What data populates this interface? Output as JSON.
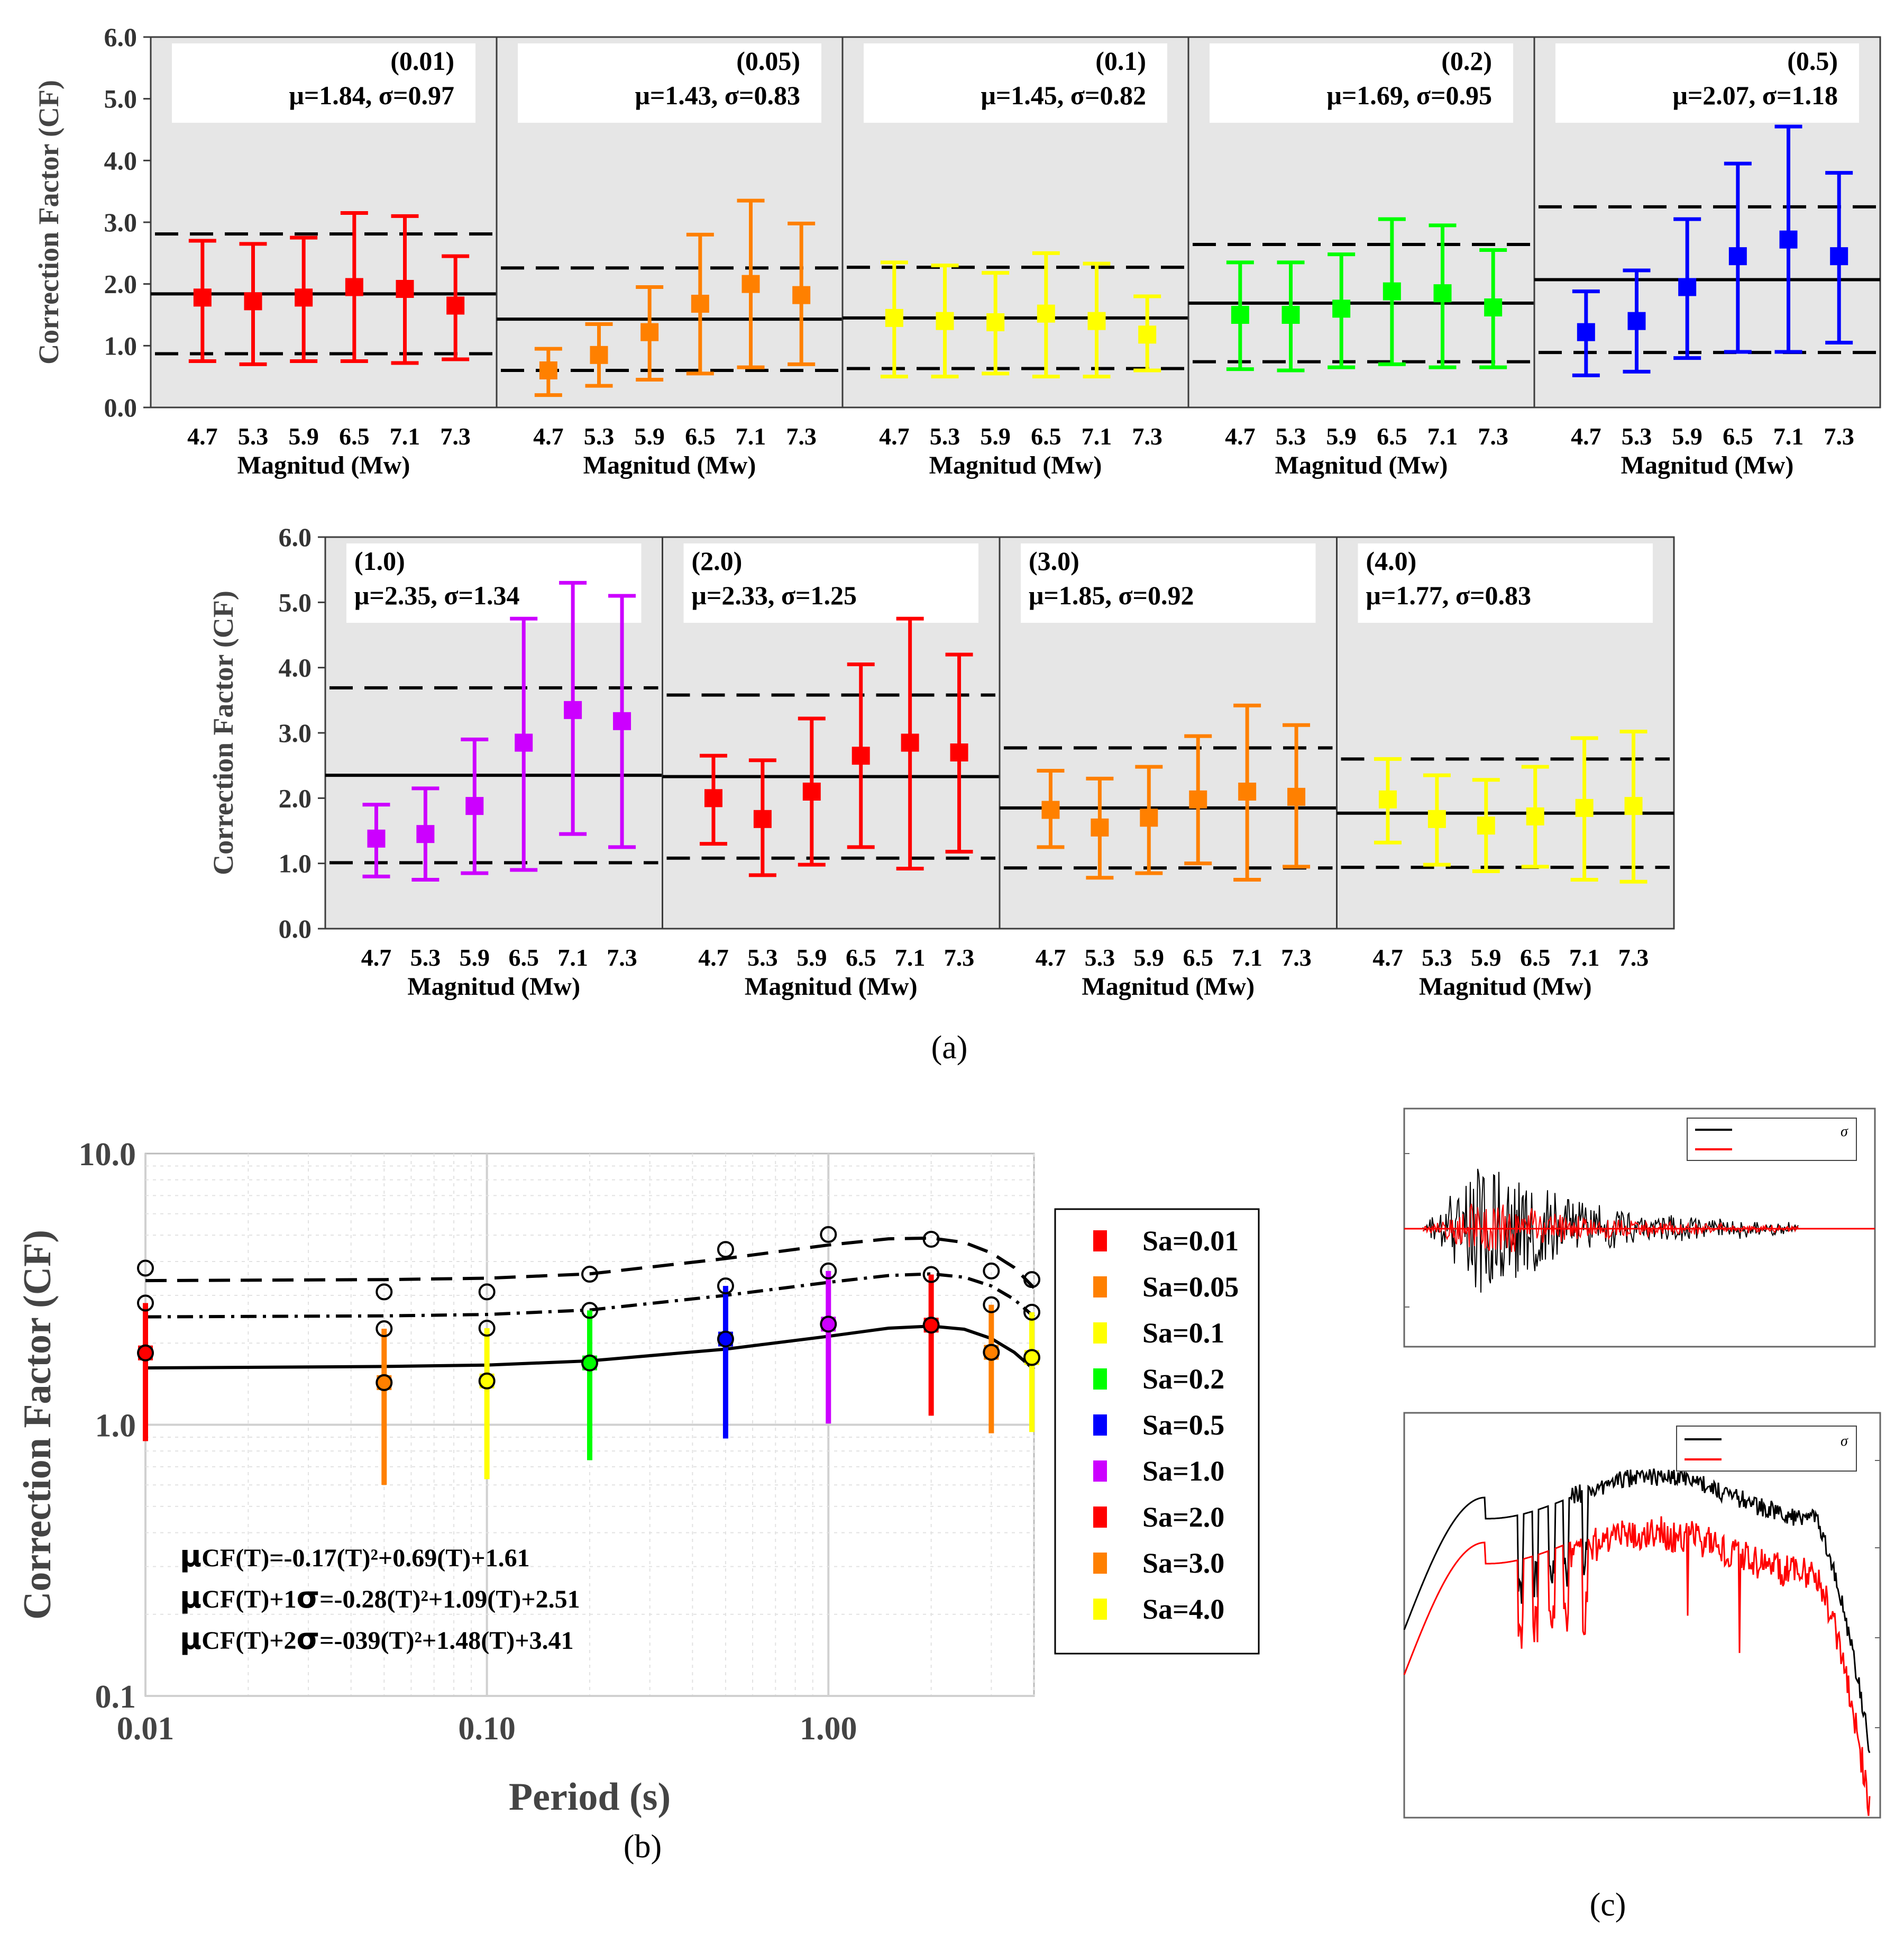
{
  "colors": {
    "Sa=0.01": "#ff0000",
    "Sa=0.05": "#ff8000",
    "Sa=0.1": "#ffff00",
    "Sa=0.2": "#00ff00",
    "Sa=0.5": "#0000ff",
    "Sa=1.0": "#cc00ff",
    "Sa=2.0": "#ff0000",
    "Sa=3.0": "#ff8000",
    "Sa=4.0": "#ffff00",
    "panel_bg": "#e6e6e6",
    "axis": "#3c3c3c"
  },
  "labels": {
    "a": "(a)",
    "b": "(b)",
    "c": "(c)"
  },
  "chart_data": [
    {
      "id": "a",
      "type": "errorbar",
      "ylabel": "Correction Factor (CF)",
      "xlabel": "Magnitud (Mw)",
      "categories": [
        "4.7",
        "5.3",
        "5.9",
        "6.5",
        "7.1",
        "7.3"
      ],
      "yticks": [
        "0.0",
        "1.0",
        "2.0",
        "3.0",
        "4.0",
        "5.0",
        "6.0"
      ],
      "ylim": [
        0,
        6
      ],
      "panels": [
        {
          "period": "(0.01)",
          "stats": "μ=1.84, σ=0.97",
          "mean": 1.84,
          "sigma": 0.97,
          "color": "Sa=0.01",
          "points": [
            {
              "v": 1.78,
              "lo": 0.75,
              "hi": 2.7
            },
            {
              "v": 1.72,
              "lo": 0.7,
              "hi": 2.65
            },
            {
              "v": 1.78,
              "lo": 0.75,
              "hi": 2.75
            },
            {
              "v": 1.95,
              "lo": 0.75,
              "hi": 3.15
            },
            {
              "v": 1.92,
              "lo": 0.72,
              "hi": 3.1
            },
            {
              "v": 1.65,
              "lo": 0.78,
              "hi": 2.45
            }
          ]
        },
        {
          "period": "(0.05)",
          "stats": "μ=1.43, σ=0.83",
          "mean": 1.43,
          "sigma": 0.83,
          "color": "Sa=0.05",
          "points": [
            {
              "v": 0.6,
              "lo": 0.2,
              "hi": 0.95
            },
            {
              "v": 0.85,
              "lo": 0.35,
              "hi": 1.35
            },
            {
              "v": 1.22,
              "lo": 0.45,
              "hi": 1.95
            },
            {
              "v": 1.68,
              "lo": 0.55,
              "hi": 2.8
            },
            {
              "v": 2.0,
              "lo": 0.65,
              "hi": 3.35
            },
            {
              "v": 1.82,
              "lo": 0.7,
              "hi": 2.98
            }
          ]
        },
        {
          "period": "(0.1)",
          "stats": "μ=1.45, σ=0.82",
          "mean": 1.45,
          "sigma": 0.82,
          "color": "Sa=0.1",
          "points": [
            {
              "v": 1.45,
              "lo": 0.5,
              "hi": 2.35
            },
            {
              "v": 1.4,
              "lo": 0.5,
              "hi": 2.3
            },
            {
              "v": 1.38,
              "lo": 0.55,
              "hi": 2.18
            },
            {
              "v": 1.52,
              "lo": 0.5,
              "hi": 2.5
            },
            {
              "v": 1.4,
              "lo": 0.5,
              "hi": 2.33
            },
            {
              "v": 1.18,
              "lo": 0.6,
              "hi": 1.8
            }
          ]
        },
        {
          "period": "(0.2)",
          "stats": "μ=1.69, σ=0.95",
          "mean": 1.69,
          "sigma": 0.95,
          "color": "Sa=0.2",
          "points": [
            {
              "v": 1.5,
              "lo": 0.62,
              "hi": 2.35
            },
            {
              "v": 1.5,
              "lo": 0.6,
              "hi": 2.35
            },
            {
              "v": 1.6,
              "lo": 0.65,
              "hi": 2.48
            },
            {
              "v": 1.88,
              "lo": 0.7,
              "hi": 3.05
            },
            {
              "v": 1.85,
              "lo": 0.65,
              "hi": 2.95
            },
            {
              "v": 1.62,
              "lo": 0.65,
              "hi": 2.55
            }
          ]
        },
        {
          "period": "(0.5)",
          "stats": "μ=2.07, σ=1.18",
          "mean": 2.07,
          "sigma": 1.18,
          "color": "Sa=0.5",
          "points": [
            {
              "v": 1.22,
              "lo": 0.52,
              "hi": 1.88
            },
            {
              "v": 1.4,
              "lo": 0.58,
              "hi": 2.22
            },
            {
              "v": 1.95,
              "lo": 0.8,
              "hi": 3.05
            },
            {
              "v": 2.45,
              "lo": 0.9,
              "hi": 3.95
            },
            {
              "v": 2.72,
              "lo": 0.9,
              "hi": 4.55
            },
            {
              "v": 2.45,
              "lo": 1.05,
              "hi": 3.8
            }
          ]
        },
        {
          "period": "(1.0)",
          "stats": "μ=2.35, σ=1.34",
          "mean": 2.35,
          "sigma": 1.34,
          "color": "Sa=1.0",
          "points": [
            {
              "v": 1.38,
              "lo": 0.8,
              "hi": 1.9
            },
            {
              "v": 1.45,
              "lo": 0.75,
              "hi": 2.15
            },
            {
              "v": 1.88,
              "lo": 0.85,
              "hi": 2.9
            },
            {
              "v": 2.85,
              "lo": 0.9,
              "hi": 4.75
            },
            {
              "v": 3.35,
              "lo": 1.45,
              "hi": 5.3
            },
            {
              "v": 3.18,
              "lo": 1.25,
              "hi": 5.1
            }
          ]
        },
        {
          "period": "(2.0)",
          "stats": "μ=2.33, σ=1.25",
          "mean": 2.33,
          "sigma": 1.25,
          "color": "Sa=2.0",
          "points": [
            {
              "v": 2.0,
              "lo": 1.3,
              "hi": 2.65
            },
            {
              "v": 1.68,
              "lo": 0.82,
              "hi": 2.58
            },
            {
              "v": 2.1,
              "lo": 0.98,
              "hi": 3.22
            },
            {
              "v": 2.65,
              "lo": 1.25,
              "hi": 4.05
            },
            {
              "v": 2.85,
              "lo": 0.92,
              "hi": 4.75
            },
            {
              "v": 2.7,
              "lo": 1.18,
              "hi": 4.2
            }
          ]
        },
        {
          "period": "(3.0)",
          "stats": "μ=1.85, σ=0.92",
          "mean": 1.85,
          "sigma": 0.92,
          "color": "Sa=3.0",
          "points": [
            {
              "v": 1.82,
              "lo": 1.25,
              "hi": 2.42
            },
            {
              "v": 1.55,
              "lo": 0.78,
              "hi": 2.3
            },
            {
              "v": 1.7,
              "lo": 0.85,
              "hi": 2.48
            },
            {
              "v": 1.98,
              "lo": 1.0,
              "hi": 2.95
            },
            {
              "v": 2.1,
              "lo": 0.75,
              "hi": 3.42
            },
            {
              "v": 2.02,
              "lo": 0.95,
              "hi": 3.12
            }
          ]
        },
        {
          "period": "(4.0)",
          "stats": "μ=1.77, σ=0.83",
          "mean": 1.77,
          "sigma": 0.83,
          "color": "Sa=4.0",
          "points": [
            {
              "v": 1.98,
              "lo": 1.32,
              "hi": 2.6
            },
            {
              "v": 1.68,
              "lo": 0.98,
              "hi": 2.35
            },
            {
              "v": 1.58,
              "lo": 0.88,
              "hi": 2.28
            },
            {
              "v": 1.72,
              "lo": 0.95,
              "hi": 2.48
            },
            {
              "v": 1.85,
              "lo": 0.75,
              "hi": 2.92
            },
            {
              "v": 1.88,
              "lo": 0.72,
              "hi": 3.02
            }
          ]
        }
      ]
    },
    {
      "id": "b",
      "type": "line+errorbar (log-log)",
      "xlabel": "Period (s)",
      "ylabel": "Correction Factor (CF)",
      "xlim": [
        0.01,
        4.0
      ],
      "ylim": [
        0.1,
        10.0
      ],
      "xticks": [
        {
          "v": 0.01,
          "label": "0.01"
        },
        {
          "v": 0.1,
          "label": "0.10"
        },
        {
          "v": 1.0,
          "label": "1.00"
        }
      ],
      "yticks": [
        {
          "v": 0.1,
          "label": "0.1"
        },
        {
          "v": 1.0,
          "label": "1.0"
        },
        {
          "v": 10.0,
          "label": "10.0"
        }
      ],
      "legend": [
        "Sa=0.01",
        "Sa=0.05",
        "Sa=0.1",
        "Sa=0.2",
        "Sa=0.5",
        "Sa=1.0",
        "Sa=2.0",
        "Sa=3.0",
        "Sa=4.0"
      ],
      "equations": [
        {
          "sym": "μ",
          "rest": "CF(T)=-0.17(T)²+0.69(T)+1.61"
        },
        {
          "sym": "μ",
          "rest": "CF(T)+1",
          "sym2": "σ",
          "rest2": "=-0.28(T)²+1.09(T)+2.51"
        },
        {
          "sym": "μ",
          "rest": "CF(T)+2",
          "sym2": "σ",
          "rest2": "=-039(T)²+1.48(T)+3.41"
        }
      ],
      "points": [
        {
          "T": 0.01,
          "mean": 1.84,
          "lo": 0.87,
          "hi": 2.81,
          "hi2": 3.78,
          "color": "Sa=0.01"
        },
        {
          "T": 0.05,
          "mean": 1.43,
          "lo": 0.6,
          "hi": 2.26,
          "hi2": 3.09,
          "color": "Sa=0.05"
        },
        {
          "T": 0.1,
          "mean": 1.45,
          "lo": 0.63,
          "hi": 2.27,
          "hi2": 3.09,
          "color": "Sa=0.1"
        },
        {
          "T": 0.2,
          "mean": 1.69,
          "lo": 0.74,
          "hi": 2.64,
          "hi2": 3.59,
          "color": "Sa=0.2"
        },
        {
          "T": 0.5,
          "mean": 2.07,
          "lo": 0.89,
          "hi": 3.25,
          "hi2": 4.43,
          "color": "Sa=0.5"
        },
        {
          "T": 1.0,
          "mean": 2.35,
          "lo": 1.01,
          "hi": 3.69,
          "hi2": 5.03,
          "color": "Sa=1.0"
        },
        {
          "T": 2.0,
          "mean": 2.33,
          "lo": 1.08,
          "hi": 3.58,
          "hi2": 4.83,
          "color": "Sa=2.0"
        },
        {
          "T": 3.0,
          "mean": 1.85,
          "lo": 0.93,
          "hi": 2.77,
          "hi2": 3.69,
          "color": "Sa=3.0"
        },
        {
          "T": 4.0,
          "mean": 1.77,
          "lo": 0.94,
          "hi": 2.6,
          "hi2": 3.43,
          "color": "Sa=4.0"
        }
      ],
      "curves": {
        "mean": [
          {
            "T": 0.01,
            "v": 1.62
          },
          {
            "T": 0.05,
            "v": 1.64
          },
          {
            "T": 0.1,
            "v": 1.66
          },
          {
            "T": 0.2,
            "v": 1.72
          },
          {
            "T": 0.5,
            "v": 1.9
          },
          {
            "T": 1.0,
            "v": 2.12
          },
          {
            "T": 1.5,
            "v": 2.27
          },
          {
            "T": 2.0,
            "v": 2.31
          },
          {
            "T": 2.5,
            "v": 2.25
          },
          {
            "T": 3.0,
            "v": 2.08
          },
          {
            "T": 3.5,
            "v": 1.85
          },
          {
            "T": 4.0,
            "v": 1.6
          }
        ],
        "plus1sigma": [
          {
            "T": 0.01,
            "v": 2.5
          },
          {
            "T": 0.05,
            "v": 2.52
          },
          {
            "T": 0.1,
            "v": 2.55
          },
          {
            "T": 0.2,
            "v": 2.65
          },
          {
            "T": 0.5,
            "v": 3.0
          },
          {
            "T": 1.0,
            "v": 3.35
          },
          {
            "T": 1.5,
            "v": 3.55
          },
          {
            "T": 2.0,
            "v": 3.6
          },
          {
            "T": 2.5,
            "v": 3.5
          },
          {
            "T": 3.0,
            "v": 3.25
          },
          {
            "T": 3.5,
            "v": 2.9
          },
          {
            "T": 4.0,
            "v": 2.5
          }
        ],
        "plus2sigma": [
          {
            "T": 0.01,
            "v": 3.4
          },
          {
            "T": 0.05,
            "v": 3.43
          },
          {
            "T": 0.1,
            "v": 3.47
          },
          {
            "T": 0.2,
            "v": 3.6
          },
          {
            "T": 0.5,
            "v": 4.1
          },
          {
            "T": 1.0,
            "v": 4.6
          },
          {
            "T": 1.5,
            "v": 4.85
          },
          {
            "T": 2.0,
            "v": 4.88
          },
          {
            "T": 2.5,
            "v": 4.7
          },
          {
            "T": 3.0,
            "v": 4.3
          },
          {
            "T": 3.5,
            "v": 3.8
          },
          {
            "T": 4.0,
            "v": 3.2
          }
        ]
      }
    },
    {
      "id": "c",
      "type": "line",
      "panels": [
        {
          "name": "time-history",
          "legend": [
            "",
            "σ"
          ],
          "series": [
            "black",
            "red"
          ]
        },
        {
          "name": "spectrum",
          "legend": [
            "",
            "σ"
          ],
          "series": [
            "black",
            "red"
          ]
        }
      ]
    }
  ]
}
